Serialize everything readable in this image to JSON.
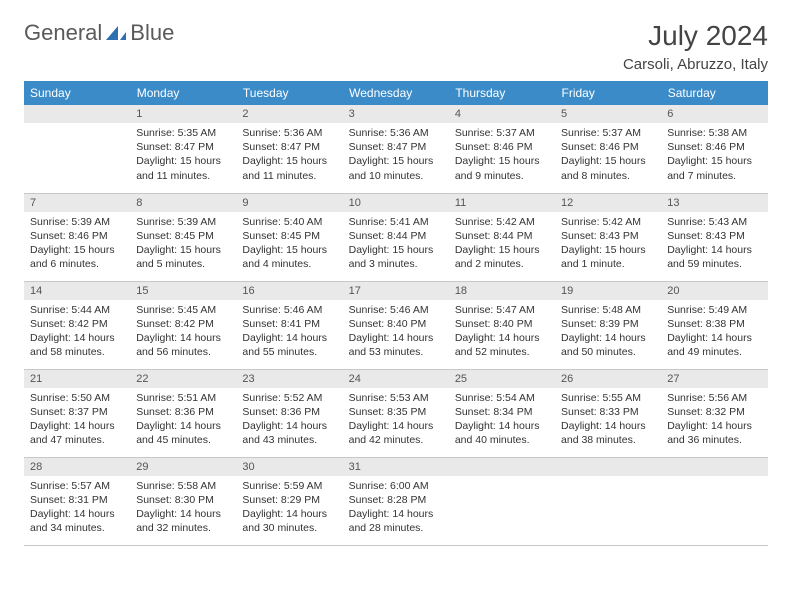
{
  "logo": {
    "text1": "General",
    "text2": "Blue"
  },
  "title": "July 2024",
  "location": "Carsoli, Abruzzo, Italy",
  "colors": {
    "header_bg": "#3b8bc9",
    "header_text": "#ffffff",
    "daynum_bg": "#e9e9e9",
    "daynum_text": "#555555",
    "body_text": "#333333",
    "border": "#c8c8c8",
    "logo_accent": "#2d6fb0"
  },
  "weekdays": [
    "Sunday",
    "Monday",
    "Tuesday",
    "Wednesday",
    "Thursday",
    "Friday",
    "Saturday"
  ],
  "weeks": [
    [
      null,
      {
        "n": "1",
        "sr": "5:35 AM",
        "ss": "8:47 PM",
        "dl": "15 hours and 11 minutes."
      },
      {
        "n": "2",
        "sr": "5:36 AM",
        "ss": "8:47 PM",
        "dl": "15 hours and 11 minutes."
      },
      {
        "n": "3",
        "sr": "5:36 AM",
        "ss": "8:47 PM",
        "dl": "15 hours and 10 minutes."
      },
      {
        "n": "4",
        "sr": "5:37 AM",
        "ss": "8:46 PM",
        "dl": "15 hours and 9 minutes."
      },
      {
        "n": "5",
        "sr": "5:37 AM",
        "ss": "8:46 PM",
        "dl": "15 hours and 8 minutes."
      },
      {
        "n": "6",
        "sr": "5:38 AM",
        "ss": "8:46 PM",
        "dl": "15 hours and 7 minutes."
      }
    ],
    [
      {
        "n": "7",
        "sr": "5:39 AM",
        "ss": "8:46 PM",
        "dl": "15 hours and 6 minutes."
      },
      {
        "n": "8",
        "sr": "5:39 AM",
        "ss": "8:45 PM",
        "dl": "15 hours and 5 minutes."
      },
      {
        "n": "9",
        "sr": "5:40 AM",
        "ss": "8:45 PM",
        "dl": "15 hours and 4 minutes."
      },
      {
        "n": "10",
        "sr": "5:41 AM",
        "ss": "8:44 PM",
        "dl": "15 hours and 3 minutes."
      },
      {
        "n": "11",
        "sr": "5:42 AM",
        "ss": "8:44 PM",
        "dl": "15 hours and 2 minutes."
      },
      {
        "n": "12",
        "sr": "5:42 AM",
        "ss": "8:43 PM",
        "dl": "15 hours and 1 minute."
      },
      {
        "n": "13",
        "sr": "5:43 AM",
        "ss": "8:43 PM",
        "dl": "14 hours and 59 minutes."
      }
    ],
    [
      {
        "n": "14",
        "sr": "5:44 AM",
        "ss": "8:42 PM",
        "dl": "14 hours and 58 minutes."
      },
      {
        "n": "15",
        "sr": "5:45 AM",
        "ss": "8:42 PM",
        "dl": "14 hours and 56 minutes."
      },
      {
        "n": "16",
        "sr": "5:46 AM",
        "ss": "8:41 PM",
        "dl": "14 hours and 55 minutes."
      },
      {
        "n": "17",
        "sr": "5:46 AM",
        "ss": "8:40 PM",
        "dl": "14 hours and 53 minutes."
      },
      {
        "n": "18",
        "sr": "5:47 AM",
        "ss": "8:40 PM",
        "dl": "14 hours and 52 minutes."
      },
      {
        "n": "19",
        "sr": "5:48 AM",
        "ss": "8:39 PM",
        "dl": "14 hours and 50 minutes."
      },
      {
        "n": "20",
        "sr": "5:49 AM",
        "ss": "8:38 PM",
        "dl": "14 hours and 49 minutes."
      }
    ],
    [
      {
        "n": "21",
        "sr": "5:50 AM",
        "ss": "8:37 PM",
        "dl": "14 hours and 47 minutes."
      },
      {
        "n": "22",
        "sr": "5:51 AM",
        "ss": "8:36 PM",
        "dl": "14 hours and 45 minutes."
      },
      {
        "n": "23",
        "sr": "5:52 AM",
        "ss": "8:36 PM",
        "dl": "14 hours and 43 minutes."
      },
      {
        "n": "24",
        "sr": "5:53 AM",
        "ss": "8:35 PM",
        "dl": "14 hours and 42 minutes."
      },
      {
        "n": "25",
        "sr": "5:54 AM",
        "ss": "8:34 PM",
        "dl": "14 hours and 40 minutes."
      },
      {
        "n": "26",
        "sr": "5:55 AM",
        "ss": "8:33 PM",
        "dl": "14 hours and 38 minutes."
      },
      {
        "n": "27",
        "sr": "5:56 AM",
        "ss": "8:32 PM",
        "dl": "14 hours and 36 minutes."
      }
    ],
    [
      {
        "n": "28",
        "sr": "5:57 AM",
        "ss": "8:31 PM",
        "dl": "14 hours and 34 minutes."
      },
      {
        "n": "29",
        "sr": "5:58 AM",
        "ss": "8:30 PM",
        "dl": "14 hours and 32 minutes."
      },
      {
        "n": "30",
        "sr": "5:59 AM",
        "ss": "8:29 PM",
        "dl": "14 hours and 30 minutes."
      },
      {
        "n": "31",
        "sr": "6:00 AM",
        "ss": "8:28 PM",
        "dl": "14 hours and 28 minutes."
      },
      null,
      null,
      null
    ]
  ],
  "labels": {
    "sunrise": "Sunrise:",
    "sunset": "Sunset:",
    "daylight": "Daylight:"
  }
}
